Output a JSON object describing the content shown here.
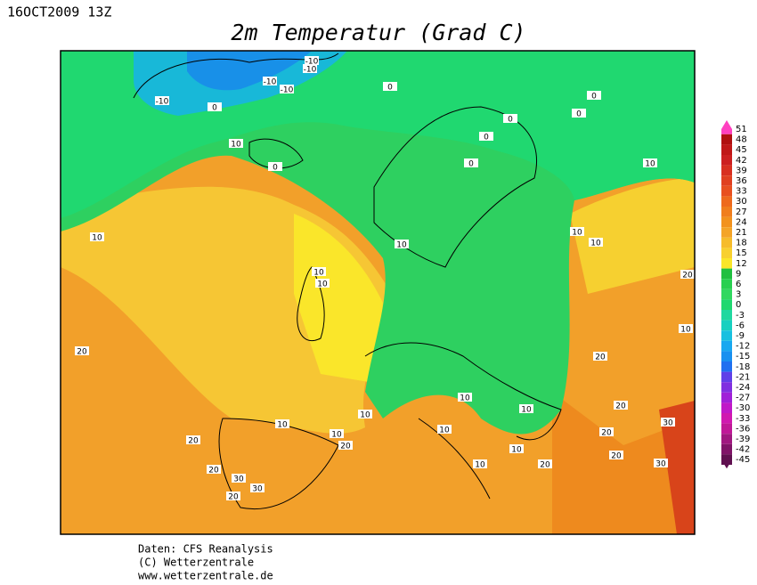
{
  "header": {
    "date": "16OCT2009 13Z",
    "title": "2m Temperatur (Grad C)"
  },
  "colorbar": {
    "labels": [
      51,
      48,
      45,
      42,
      39,
      36,
      33,
      30,
      27,
      24,
      21,
      18,
      15,
      12,
      9,
      6,
      3,
      0,
      -3,
      -6,
      -9,
      -12,
      -15,
      -18,
      -21,
      -24,
      -27,
      -30,
      -33,
      -36,
      -39,
      -42,
      -45
    ]
  },
  "map": {
    "contour_labels": [
      "-10",
      "-10",
      "-10",
      "-10",
      "-10",
      "0",
      "0",
      "0",
      "0",
      "0",
      "0",
      "0",
      "0",
      "10",
      "10",
      "10",
      "10",
      "10",
      "10",
      "10",
      "10",
      "10",
      "10",
      "10",
      "10",
      "10",
      "10",
      "10",
      "10",
      "10",
      "20",
      "20",
      "20",
      "20",
      "20",
      "20",
      "20",
      "20",
      "20",
      "20",
      "20",
      "30",
      "30",
      "30",
      "30"
    ]
  },
  "footer": {
    "source": "Daten: CFS Reanalysis",
    "copyright": "(C) Wetterzentrale",
    "url": "www.wetterzentrale.de"
  }
}
